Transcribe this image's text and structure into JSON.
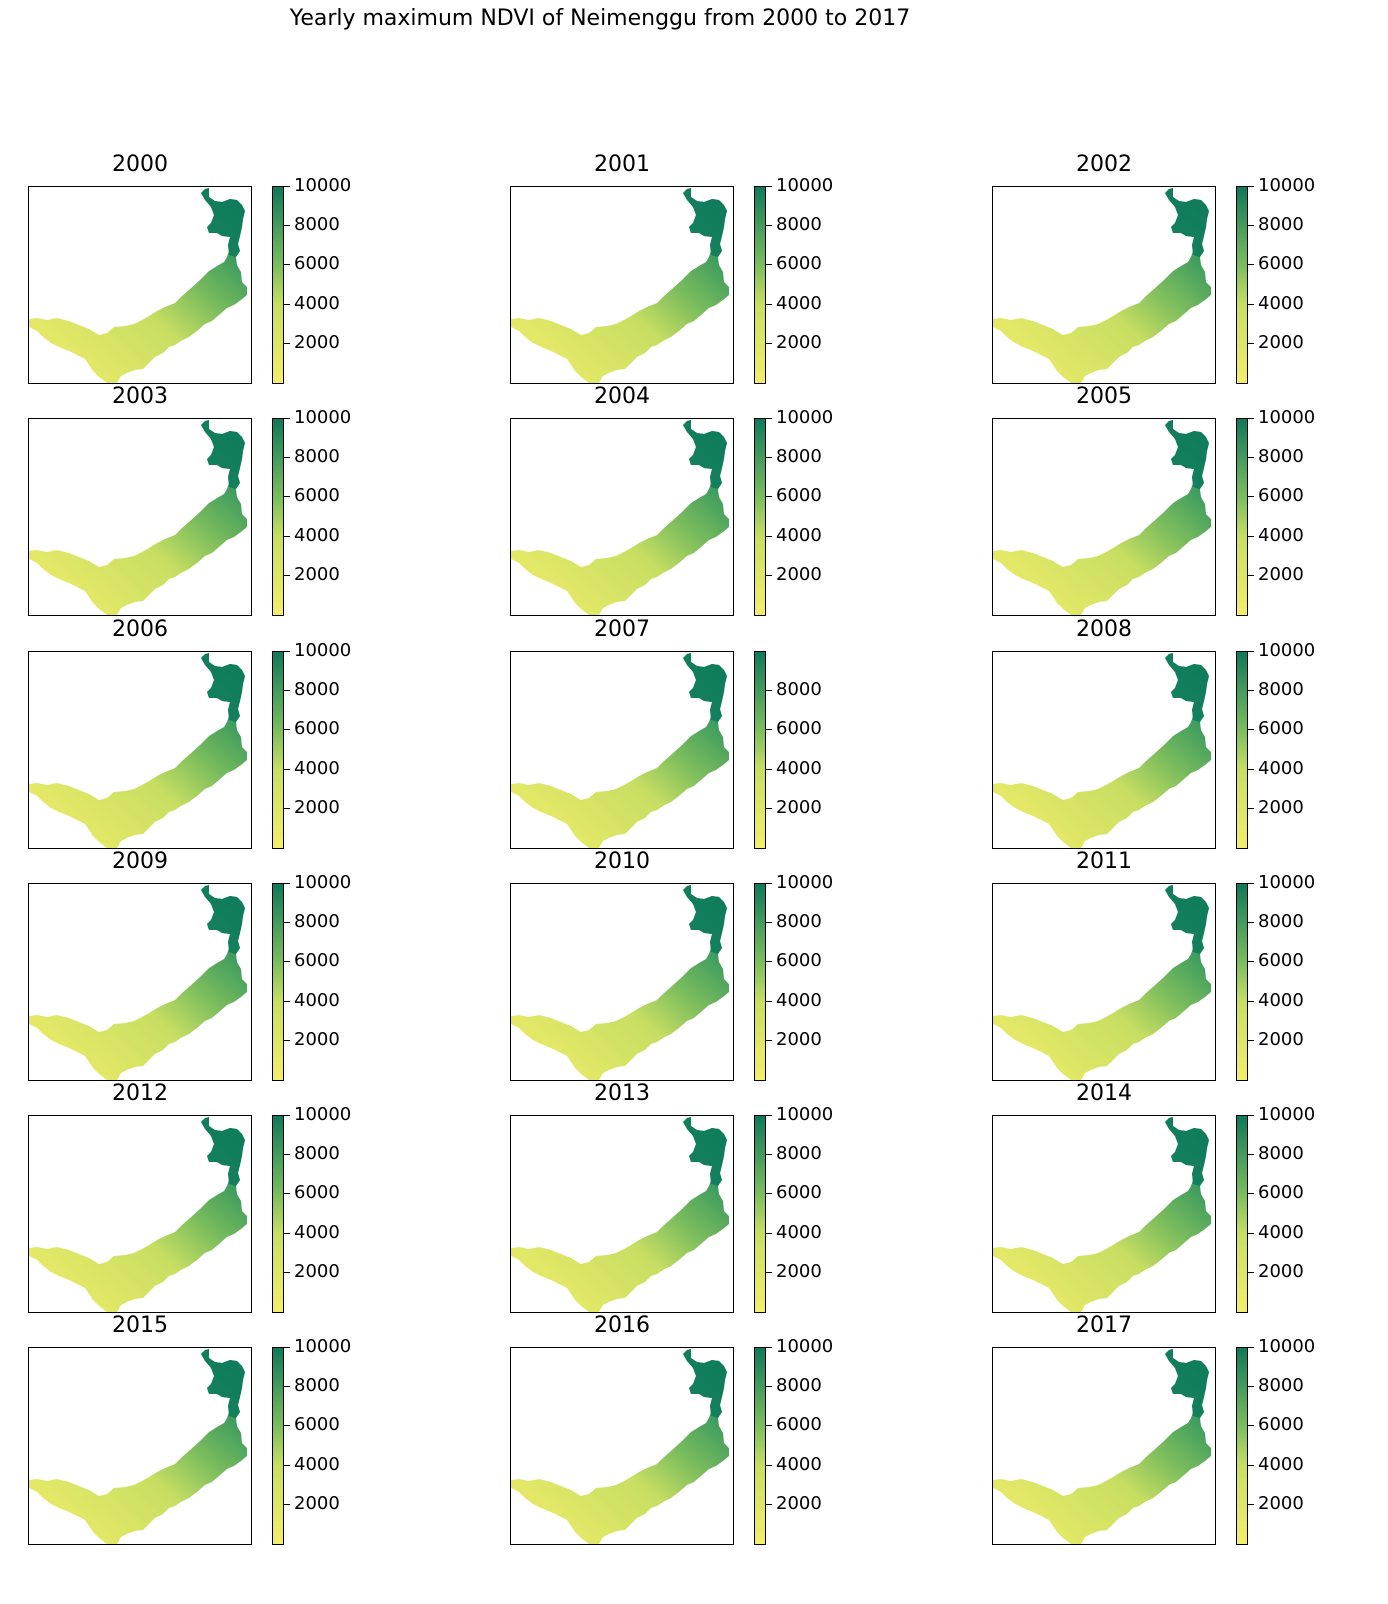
{
  "figure": {
    "title": "Yearly maximum NDVI of Neimenggu from 2000 to 2017"
  },
  "colors": {
    "cmap_low": "#f4ee6a",
    "cmap_mid": "#7cbd5d",
    "cmap_high": "#0d7a5c",
    "axes_border": "#000000"
  },
  "chart_data": [
    {
      "type": "heatmap",
      "title": "2000",
      "colorbar_ticks": [
        "2000",
        "4000",
        "6000",
        "8000",
        "10000"
      ],
      "colorbar_range": [
        0,
        10000
      ]
    },
    {
      "type": "heatmap",
      "title": "2001",
      "colorbar_ticks": [
        "2000",
        "4000",
        "6000",
        "8000",
        "10000"
      ],
      "colorbar_range": [
        0,
        10000
      ]
    },
    {
      "type": "heatmap",
      "title": "2002",
      "colorbar_ticks": [
        "2000",
        "4000",
        "6000",
        "8000",
        "10000"
      ],
      "colorbar_range": [
        0,
        10000
      ]
    },
    {
      "type": "heatmap",
      "title": "2003",
      "colorbar_ticks": [
        "2000",
        "4000",
        "6000",
        "8000",
        "10000"
      ],
      "colorbar_range": [
        0,
        10000
      ]
    },
    {
      "type": "heatmap",
      "title": "2004",
      "colorbar_ticks": [
        "2000",
        "4000",
        "6000",
        "8000",
        "10000"
      ],
      "colorbar_range": [
        0,
        10000
      ]
    },
    {
      "type": "heatmap",
      "title": "2005",
      "colorbar_ticks": [
        "2000",
        "4000",
        "6000",
        "8000",
        "10000"
      ],
      "colorbar_range": [
        0,
        10000
      ]
    },
    {
      "type": "heatmap",
      "title": "2006",
      "colorbar_ticks": [
        "2000",
        "4000",
        "6000",
        "8000",
        "10000"
      ],
      "colorbar_range": [
        0,
        10000
      ]
    },
    {
      "type": "heatmap",
      "title": "2007",
      "colorbar_ticks": [
        "2000",
        "4000",
        "6000",
        "8000"
      ],
      "colorbar_range": [
        0,
        10000
      ]
    },
    {
      "type": "heatmap",
      "title": "2008",
      "colorbar_ticks": [
        "2000",
        "4000",
        "6000",
        "8000",
        "10000"
      ],
      "colorbar_range": [
        0,
        10000
      ]
    },
    {
      "type": "heatmap",
      "title": "2009",
      "colorbar_ticks": [
        "2000",
        "4000",
        "6000",
        "8000",
        "10000"
      ],
      "colorbar_range": [
        0,
        10000
      ]
    },
    {
      "type": "heatmap",
      "title": "2010",
      "colorbar_ticks": [
        "2000",
        "4000",
        "6000",
        "8000",
        "10000"
      ],
      "colorbar_range": [
        0,
        10000
      ]
    },
    {
      "type": "heatmap",
      "title": "2011",
      "colorbar_ticks": [
        "2000",
        "4000",
        "6000",
        "8000",
        "10000"
      ],
      "colorbar_range": [
        0,
        10000
      ]
    },
    {
      "type": "heatmap",
      "title": "2012",
      "colorbar_ticks": [
        "2000",
        "4000",
        "6000",
        "8000",
        "10000"
      ],
      "colorbar_range": [
        0,
        10000
      ]
    },
    {
      "type": "heatmap",
      "title": "2013",
      "colorbar_ticks": [
        "2000",
        "4000",
        "6000",
        "8000",
        "10000"
      ],
      "colorbar_range": [
        0,
        10000
      ]
    },
    {
      "type": "heatmap",
      "title": "2014",
      "colorbar_ticks": [
        "2000",
        "4000",
        "6000",
        "8000",
        "10000"
      ],
      "colorbar_range": [
        0,
        10000
      ]
    },
    {
      "type": "heatmap",
      "title": "2015",
      "colorbar_ticks": [
        "2000",
        "4000",
        "6000",
        "8000",
        "10000"
      ],
      "colorbar_range": [
        0,
        10000
      ]
    },
    {
      "type": "heatmap",
      "title": "2016",
      "colorbar_ticks": [
        "2000",
        "4000",
        "6000",
        "8000",
        "10000"
      ],
      "colorbar_range": [
        0,
        10000
      ]
    },
    {
      "type": "heatmap",
      "title": "2017",
      "colorbar_ticks": [
        "2000",
        "4000",
        "6000",
        "8000",
        "10000"
      ],
      "colorbar_range": [
        0,
        10000
      ]
    }
  ]
}
